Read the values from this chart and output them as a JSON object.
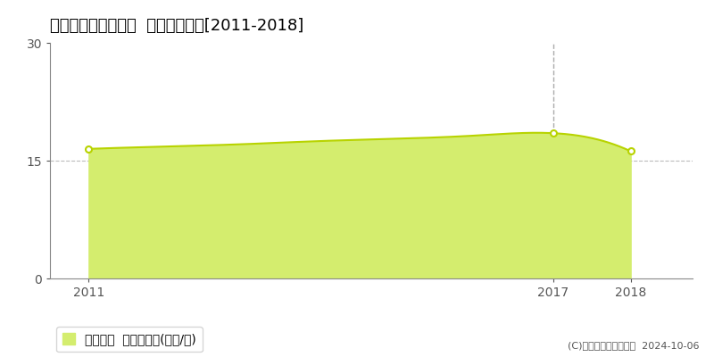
{
  "title": "徳島市南佐古一番町  土地価格推移[2011-2018]",
  "years": [
    2011,
    2012,
    2013,
    2014,
    2015,
    2016,
    2017,
    2018
  ],
  "values": [
    16.5,
    16.8,
    17.1,
    17.5,
    17.8,
    18.2,
    18.5,
    16.2
  ],
  "marker_years": [
    2011,
    2017,
    2018
  ],
  "marker_values": [
    16.5,
    18.5,
    16.2
  ],
  "xlim": [
    2010.5,
    2018.8
  ],
  "ylim": [
    0,
    30
  ],
  "yticks": [
    0,
    15,
    30
  ],
  "xticks": [
    2011,
    2017,
    2018
  ],
  "fill_color": "#d4ed6e",
  "line_color": "#b8d300",
  "marker_color": "#ffffff",
  "marker_edge_color": "#b8d300",
  "vline_x": 2017,
  "vline_color": "#aaaaaa",
  "hgrid_color": "#bbbbbb",
  "bg_color": "#ffffff",
  "plot_bg_color": "#ffffff",
  "legend_label": "土地価格  平均坪単価(万円/坪)",
  "copyright_text": "(C)土地価格ドットコム  2024-10-06",
  "title_fontsize": 13,
  "axis_fontsize": 10,
  "legend_fontsize": 10
}
